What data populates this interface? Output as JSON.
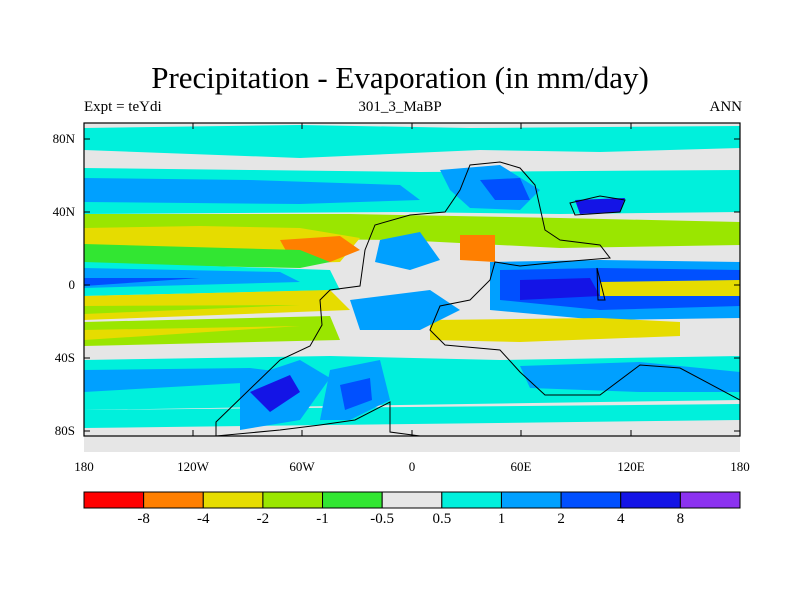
{
  "title": "Precipitation - Evaporation (in mm/day)",
  "left_string": "Expt = teYdi",
  "center_string": "301_3_MaBP",
  "right_string": "ANN",
  "lat_ticks": [
    "80N",
    "40N",
    "0",
    "40S",
    "80S"
  ],
  "lon_ticks": [
    "180",
    "120W",
    "60W",
    "0",
    "60E",
    "120E",
    "180"
  ],
  "colorbar": {
    "labels": [
      "-8",
      "-4",
      "-2",
      "-1",
      "-0.5",
      "0.5",
      "1",
      "2",
      "4",
      "8"
    ],
    "colors": [
      "#ff0000",
      "#ff7f00",
      "#e6dc00",
      "#9ae600",
      "#32e632",
      "#e6e6e6",
      "#00f0dc",
      "#00a0ff",
      "#0050ff",
      "#1414e6",
      "#8c32f0"
    ]
  }
}
